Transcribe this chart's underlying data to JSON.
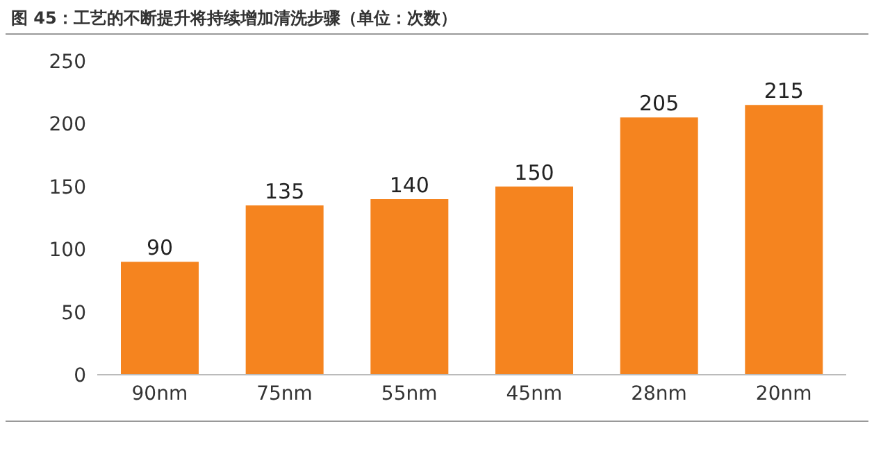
{
  "chart_data": {
    "type": "bar",
    "title": "图 45：工艺的不断提升将持续增加清洗步骤（单位：次数）",
    "categories": [
      "90nm",
      "75nm",
      "55nm",
      "45nm",
      "28nm",
      "20nm"
    ],
    "values": [
      90,
      135,
      140,
      150,
      205,
      215
    ],
    "color": "#f5841f",
    "ylim": [
      0,
      250
    ],
    "yticks": [
      0,
      50,
      100,
      150,
      200,
      250
    ],
    "grid": false,
    "data_labels": true
  }
}
